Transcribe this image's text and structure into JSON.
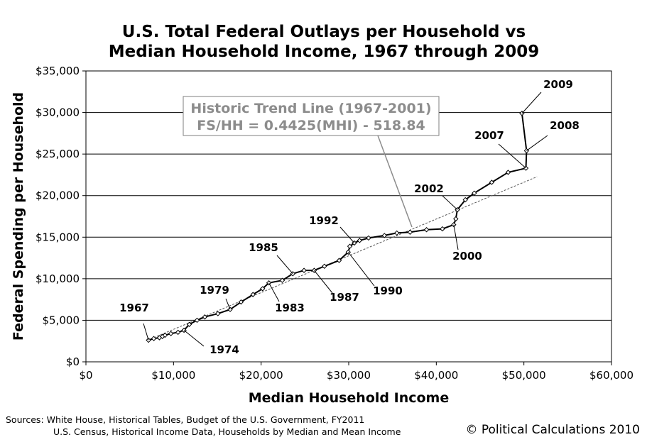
{
  "chart_data": {
    "type": "line",
    "title_line1": "U.S. Total Federal Outlays per Household vs",
    "title_line2": "Median Household Income, 1967 through 2009",
    "xlabel": "Median Household Income",
    "ylabel": "Federal Spending per Household",
    "xlim": [
      0,
      60000
    ],
    "ylim": [
      0,
      35000
    ],
    "x_ticks": [
      {
        "value": 0,
        "label": "$0"
      },
      {
        "value": 10000,
        "label": "$10,000"
      },
      {
        "value": 20000,
        "label": "$20,000"
      },
      {
        "value": 30000,
        "label": "$30,000"
      },
      {
        "value": 40000,
        "label": "$40,000"
      },
      {
        "value": 50000,
        "label": "$50,000"
      },
      {
        "value": 60000,
        "label": "$60,000"
      }
    ],
    "y_ticks": [
      {
        "value": 0,
        "label": "$0"
      },
      {
        "value": 5000,
        "label": "$5,000"
      },
      {
        "value": 10000,
        "label": "$10,000"
      },
      {
        "value": 15000,
        "label": "$15,000"
      },
      {
        "value": 20000,
        "label": "$20,000"
      },
      {
        "value": 25000,
        "label": "$25,000"
      },
      {
        "value": 30000,
        "label": "$30,000"
      },
      {
        "value": 35000,
        "label": "$35,000"
      }
    ],
    "grid": "horizontal",
    "series": [
      {
        "name": "Federal Outlays per Household",
        "points": [
          {
            "year": 1967,
            "x": 7143,
            "y": 2600
          },
          {
            "year": 1968,
            "x": 7743,
            "y": 2800
          },
          {
            "year": 1969,
            "x": 8389,
            "y": 2900
          },
          {
            "year": 1970,
            "x": 8734,
            "y": 3050
          },
          {
            "year": 1971,
            "x": 9028,
            "y": 3200
          },
          {
            "year": 1972,
            "x": 9697,
            "y": 3400
          },
          {
            "year": 1973,
            "x": 10512,
            "y": 3550
          },
          {
            "year": 1974,
            "x": 11197,
            "y": 3800
          },
          {
            "year": 1975,
            "x": 11800,
            "y": 4500
          },
          {
            "year": 1976,
            "x": 12686,
            "y": 5000
          },
          {
            "year": 1977,
            "x": 13572,
            "y": 5400
          },
          {
            "year": 1978,
            "x": 15064,
            "y": 5800
          },
          {
            "year": 1979,
            "x": 16461,
            "y": 6300
          },
          {
            "year": 1980,
            "x": 17710,
            "y": 7200
          },
          {
            "year": 1981,
            "x": 19074,
            "y": 8100
          },
          {
            "year": 1982,
            "x": 20171,
            "y": 8800
          },
          {
            "year": 1983,
            "x": 20885,
            "y": 9500
          },
          {
            "year": 1984,
            "x": 22415,
            "y": 9800
          },
          {
            "year": 1985,
            "x": 23618,
            "y": 10600
          },
          {
            "year": 1986,
            "x": 24897,
            "y": 11000
          },
          {
            "year": 1987,
            "x": 26061,
            "y": 11000
          },
          {
            "year": 1988,
            "x": 27225,
            "y": 11500
          },
          {
            "year": 1989,
            "x": 28906,
            "y": 12200
          },
          {
            "year": 1990,
            "x": 29943,
            "y": 13200
          },
          {
            "year": 1991,
            "x": 30126,
            "y": 13900
          },
          {
            "year": 1992,
            "x": 30636,
            "y": 14300
          },
          {
            "year": 1993,
            "x": 31241,
            "y": 14600
          },
          {
            "year": 1994,
            "x": 32264,
            "y": 14900
          },
          {
            "year": 1995,
            "x": 34076,
            "y": 15200
          },
          {
            "year": 1996,
            "x": 35492,
            "y": 15500
          },
          {
            "year": 1997,
            "x": 37005,
            "y": 15600
          },
          {
            "year": 1998,
            "x": 38885,
            "y": 15900
          },
          {
            "year": 1999,
            "x": 40696,
            "y": 16000
          },
          {
            "year": 2000,
            "x": 41990,
            "y": 16500
          },
          {
            "year": 2001,
            "x": 42228,
            "y": 17200
          },
          {
            "year": 2002,
            "x": 42409,
            "y": 18300
          },
          {
            "year": 2003,
            "x": 43318,
            "y": 19500
          },
          {
            "year": 2004,
            "x": 44334,
            "y": 20300
          },
          {
            "year": 2005,
            "x": 46326,
            "y": 21600
          },
          {
            "year": 2006,
            "x": 48201,
            "y": 22800
          },
          {
            "year": 2007,
            "x": 50233,
            "y": 23300
          },
          {
            "year": 2008,
            "x": 50303,
            "y": 25400
          },
          {
            "year": 2009,
            "x": 49777,
            "y": 29900
          }
        ]
      },
      {
        "name": "Historic Trend Line (1967-2001)",
        "style": "dashed",
        "slope": 0.4425,
        "intercept": -518.84,
        "x_range": [
          7000,
          51500
        ]
      }
    ],
    "annotations": [
      {
        "text": "1967",
        "year": 1967
      },
      {
        "text": "1974",
        "year": 1974
      },
      {
        "text": "1979",
        "year": 1979
      },
      {
        "text": "1983",
        "year": 1983
      },
      {
        "text": "1985",
        "year": 1985
      },
      {
        "text": "1987",
        "year": 1987
      },
      {
        "text": "1990",
        "year": 1990
      },
      {
        "text": "1992",
        "year": 1992
      },
      {
        "text": "2000",
        "year": 2000
      },
      {
        "text": "2002",
        "year": 2002
      },
      {
        "text": "2007",
        "year": 2007
      },
      {
        "text": "2008",
        "year": 2008
      },
      {
        "text": "2009",
        "year": 2009
      }
    ],
    "trend_box": {
      "line1": "Historic Trend Line (1967-2001)",
      "line2": "FS/HH = 0.4425(MHI) - 518.84"
    },
    "sources_line1": "Sources: White House, Historical Tables, Budget of the U.S. Government, FY2011",
    "sources_line2": "U.S. Census, Historical Income Data, Households by Median and Mean Income",
    "copyright": "© Political Calculations 2010"
  }
}
